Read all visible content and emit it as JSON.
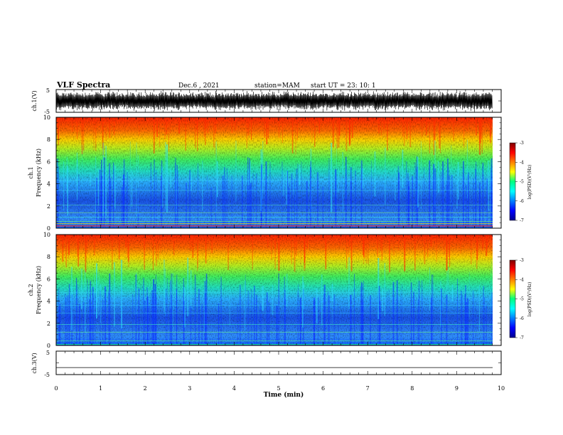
{
  "header": {
    "title": "VLF Spectra",
    "date": "Dec.6 , 2021",
    "station": "station=MAM",
    "start_ut": "start UT =  23: 10: 1"
  },
  "chart_data": [
    {
      "type": "line",
      "ylabel": "ch.1(V)",
      "ylim": [
        -5,
        5
      ],
      "yticks": [
        "5",
        "-5"
      ],
      "description": "dense noisy waveform filling most of the range"
    },
    {
      "type": "heatmap",
      "ylabel_line1": "ch.1",
      "ylabel_line2": "Frequency (kHz)",
      "ylim": [
        0,
        10
      ],
      "yticks": [
        "0",
        "2",
        "4",
        "6",
        "8",
        "10"
      ],
      "colorbar": {
        "label": "log(PSD)(V²/Hz)",
        "range": [
          -7,
          -3
        ],
        "ticks": [
          "-3",
          "-4",
          "-5",
          "-6",
          "-7"
        ]
      }
    },
    {
      "type": "heatmap",
      "ylabel_line1": "ch.2",
      "ylabel_line2": "Frequency (kHz)",
      "ylim": [
        0,
        10
      ],
      "yticks": [
        "0",
        "2",
        "4",
        "6",
        "8",
        "10"
      ],
      "colorbar": {
        "label": "log(PSD)(V²/Hz)",
        "range": [
          -7,
          -3
        ],
        "ticks": [
          "-3",
          "-4",
          "-5",
          "-6",
          "-7"
        ]
      }
    },
    {
      "type": "line",
      "ylabel": "ch.3(V)",
      "ylim": [
        -5,
        5
      ],
      "yticks": [
        "5",
        "-5"
      ],
      "value": -2
    }
  ],
  "xaxis": {
    "label": "Time (min)",
    "xlim": [
      0,
      10
    ],
    "ticks": [
      "0",
      "1",
      "2",
      "3",
      "4",
      "5",
      "6",
      "7",
      "8",
      "9",
      "10"
    ]
  }
}
